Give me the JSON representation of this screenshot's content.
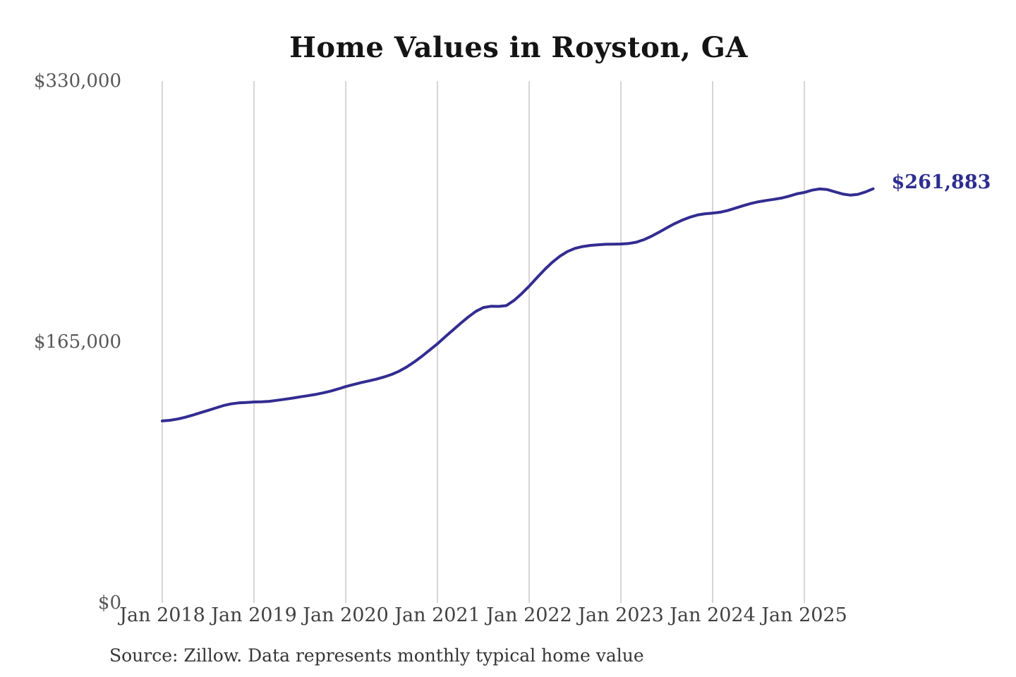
{
  "title": "Home Values in Royston, GA",
  "source_note": "Source: Zillow. Data represents monthly typical home value",
  "colors": {
    "line": "#322c91",
    "grid": "#c9c9c9",
    "y_label_text": "#575757",
    "x_label_text": "#414141",
    "title_text": "#141414",
    "note_text": "#363636",
    "end_label_text": "#2e2d90"
  },
  "chart_data": {
    "type": "line",
    "title": "Home Values in Royston, GA",
    "xlabel": "",
    "ylabel": "",
    "ylim": [
      0,
      330000
    ],
    "grid": "vertical-only",
    "legend": "none",
    "x_ticks": [
      "Jan 2018",
      "Jan 2019",
      "Jan 2020",
      "Jan 2021",
      "Jan 2022",
      "Jan 2023",
      "Jan 2024",
      "Jan 2025"
    ],
    "y_ticks": [
      {
        "label": "$0",
        "value": 0
      },
      {
        "label": "$165,000",
        "value": 165000
      },
      {
        "label": "$330,000",
        "value": 330000
      }
    ],
    "series": [
      {
        "name": "Monthly typical home value",
        "frequency": "monthly",
        "start_month": "Jan 2018",
        "end_month": "Oct 2025",
        "values": [
          115100,
          115500,
          116300,
          117400,
          118800,
          120300,
          121800,
          123300,
          124800,
          125900,
          126500,
          126800,
          127100,
          127200,
          127500,
          128100,
          128800,
          129500,
          130300,
          131000,
          131800,
          132800,
          133900,
          135300,
          136800,
          138100,
          139300,
          140400,
          141500,
          142900,
          144500,
          146600,
          149300,
          152500,
          156100,
          160000,
          163900,
          168200,
          172500,
          176700,
          180700,
          184300,
          186800,
          187600,
          187500,
          188000,
          191200,
          195500,
          200300,
          205600,
          210700,
          215300,
          219200,
          222200,
          224200,
          225400,
          226100,
          226500,
          226800,
          226900,
          227000,
          227300,
          228100,
          229700,
          231900,
          234500,
          237200,
          239800,
          242000,
          243900,
          245300,
          246100,
          246500,
          247100,
          248200,
          249700,
          251200,
          252600,
          253700,
          254500,
          255200,
          256000,
          257200,
          258700,
          259600,
          261000,
          261800,
          261400,
          260000,
          258600,
          257900,
          258400,
          259900,
          261883
        ]
      }
    ],
    "final_value": 261883,
    "final_value_label": "$261,883"
  }
}
